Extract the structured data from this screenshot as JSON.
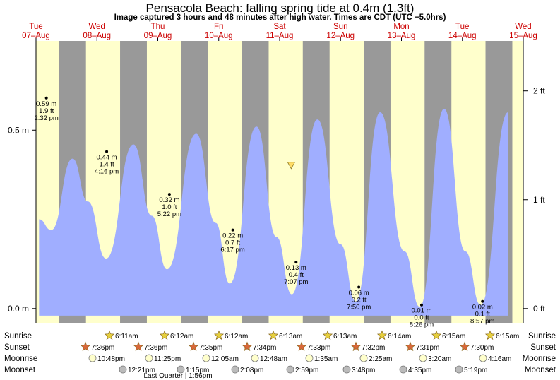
{
  "title": "Pensacola Beach: falling  spring tide at 0.4m (1.3ft)",
  "subtitle": "Image captured 3 hours and 48 minutes after high water. Times are CDT (UTC −5.0hrs)",
  "colors": {
    "day": "#ffffcc",
    "night": "#999999",
    "tide": "#a0aeff",
    "date_label": "#cc0000",
    "now_marker": "#ffdd66",
    "star_sunrise": "#e6cf3d",
    "star_sunset": "#d9683a",
    "moon": "#ffffcc",
    "moon_set": "#bbbbbb"
  },
  "dates": [
    {
      "day": "Tue",
      "date": "07–Aug"
    },
    {
      "day": "Wed",
      "date": "08–Aug"
    },
    {
      "day": "Thu",
      "date": "09–Aug"
    },
    {
      "day": "Fri",
      "date": "10–Aug"
    },
    {
      "day": "Sat",
      "date": "11–Aug"
    },
    {
      "day": "Sun",
      "date": "12–Aug"
    },
    {
      "day": "Mon",
      "date": "13–Aug"
    },
    {
      "day": "Tue",
      "date": "14–Aug"
    },
    {
      "day": "Wed",
      "date": "15–Aug"
    }
  ],
  "row_labels": {
    "sunrise": "Sunrise",
    "sunset": "Sunset",
    "moonrise": "Moonrise",
    "moonset": "Moonset"
  },
  "sunrise": [
    "6:11am",
    "6:12am",
    "6:12am",
    "6:13am",
    "6:13am",
    "6:14am",
    "6:15am",
    "6:15am"
  ],
  "sunset": [
    "7:36pm",
    "7:36pm",
    "7:35pm",
    "7:34pm",
    "7:33pm",
    "7:32pm",
    "7:31pm",
    "7:30pm"
  ],
  "moonrise": [
    "10:48pm",
    "11:25pm",
    "12:05am",
    "12:48am",
    "1:35am",
    "2:25am",
    "3:20am",
    "4:16am"
  ],
  "moonset": [
    "12:21pm",
    "1:15pm",
    "2:08pm",
    "2:59pm",
    "3:48pm",
    "4:35pm",
    "5:19pm"
  ],
  "moon_phase": "Last Quarter | 1:56pm",
  "chart_data": {
    "type": "area",
    "x_unit": "day (Aug 2018, CDT)",
    "y_unit": "m",
    "ylim": [
      -0.04,
      0.75
    ],
    "left_ticks": [
      {
        "value": 0.0,
        "label": "0.0 m"
      },
      {
        "value": 0.5,
        "label": "0.5 m"
      }
    ],
    "right_ticks": [
      {
        "value": 0.0,
        "label": "0 ft"
      },
      {
        "value": 0.305,
        "label": "1 ft"
      },
      {
        "value": 0.61,
        "label": "2 ft"
      }
    ],
    "series": [
      {
        "name": "tide",
        "points": [
          [
            7.05,
            0.25
          ],
          [
            7.25,
            0.22
          ],
          [
            7.6,
            0.42
          ],
          [
            7.85,
            0.3
          ],
          [
            8.15,
            0.14
          ],
          [
            8.6,
            0.46
          ],
          [
            8.9,
            0.26
          ],
          [
            9.15,
            0.11
          ],
          [
            9.63,
            0.49
          ],
          [
            9.95,
            0.24
          ],
          [
            10.18,
            0.07
          ],
          [
            10.62,
            0.51
          ],
          [
            10.95,
            0.2
          ],
          [
            11.2,
            0.04
          ],
          [
            11.62,
            0.53
          ],
          [
            12.0,
            0.18
          ],
          [
            12.25,
            0.02
          ],
          [
            12.65,
            0.55
          ],
          [
            13.05,
            0.16
          ],
          [
            13.3,
            0.005
          ],
          [
            13.7,
            0.56
          ],
          [
            14.05,
            0.16
          ],
          [
            14.3,
            0.01
          ],
          [
            14.75,
            0.55
          ]
        ]
      }
    ],
    "tide_labels": [
      {
        "x": 7.17,
        "height_m": 0.59,
        "m": "0.59 m",
        "ft": "1.9 ft",
        "time": "2:32 pm"
      },
      {
        "x": 8.16,
        "height_m": 0.44,
        "m": "0.44 m",
        "ft": "1.4 ft",
        "time": "4:16 pm"
      },
      {
        "x": 9.19,
        "height_m": 0.32,
        "m": "0.32 m",
        "ft": "1.0 ft",
        "time": "5:22 pm"
      },
      {
        "x": 10.23,
        "height_m": 0.22,
        "m": "0.22 m",
        "ft": "0.7 ft",
        "time": "6:17 pm"
      },
      {
        "x": 11.27,
        "height_m": 0.13,
        "m": "0.13 m",
        "ft": "0.4 ft",
        "time": "7:07 pm"
      },
      {
        "x": 12.3,
        "height_m": 0.06,
        "m": "0.06 m",
        "ft": "0.2 ft",
        "time": "7:50 pm"
      },
      {
        "x": 13.33,
        "height_m": 0.01,
        "m": "0.01 m",
        "ft": "0.0 ft",
        "time": "8:26 pm"
      },
      {
        "x": 14.33,
        "height_m": 0.02,
        "m": "0.02 m",
        "ft": "0.1 ft",
        "time": "8:57 pm"
      }
    ],
    "now_marker": {
      "x": 11.19,
      "height_m": 0.4
    },
    "day_bands": [
      {
        "start": 7.0,
        "end": 7.38
      },
      {
        "start": 7.82,
        "end": 8.38
      },
      {
        "start": 8.82,
        "end": 9.38
      },
      {
        "start": 9.82,
        "end": 10.38
      },
      {
        "start": 10.82,
        "end": 11.38
      },
      {
        "start": 11.82,
        "end": 12.38
      },
      {
        "start": 12.82,
        "end": 13.38
      },
      {
        "start": 13.82,
        "end": 14.38
      },
      {
        "start": 14.82,
        "end": 15.0
      }
    ]
  }
}
